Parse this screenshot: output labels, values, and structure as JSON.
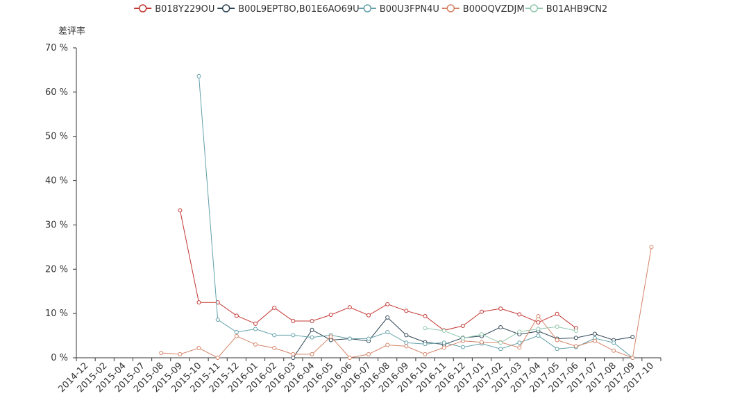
{
  "chart_data": {
    "type": "line",
    "ylabel": "差评率",
    "y_unit": "%",
    "ylim": [
      0,
      70
    ],
    "y_ticks": [
      0,
      10,
      20,
      30,
      40,
      50,
      60,
      70
    ],
    "y_tick_labels": [
      "0 %",
      "10 %",
      "20 %",
      "30 %",
      "40 %",
      "50 %",
      "60 %",
      "70 %"
    ],
    "grid": false,
    "legend_position": "top",
    "x": [
      "2014-12",
      "2015-02",
      "2015-04",
      "2015-07",
      "2015-08",
      "2015-09",
      "2015-10",
      "2015-11",
      "2015-12",
      "2016-01",
      "2016-02",
      "2016-03",
      "2016-04",
      "2016-05",
      "2016-06",
      "2016-07",
      "2016-08",
      "2016-09",
      "2016-10",
      "2016-11",
      "2016-12",
      "2017-01",
      "2017-02",
      "2017-03",
      "2017-04",
      "2017-05",
      "2017-06",
      "2017-07",
      "2017-08",
      "2017-09",
      "2017-10"
    ],
    "series": [
      {
        "name": "B018Y229OU",
        "color": "#c23531",
        "values": [
          null,
          null,
          null,
          null,
          null,
          33.3,
          12.5,
          12.5,
          9.5,
          7.7,
          11.3,
          8.3,
          8.3,
          9.7,
          11.4,
          9.6,
          12.1,
          10.6,
          9.4,
          6.2,
          7.2,
          10.4,
          11.1,
          9.8,
          8.0,
          9.9,
          6.7,
          null,
          null,
          null,
          null
        ]
      },
      {
        "name": "B00L9EPT8O,B01E6AO69U",
        "color": "#2f4554",
        "values": [
          null,
          null,
          null,
          null,
          null,
          null,
          null,
          null,
          null,
          null,
          null,
          0,
          6.3,
          4.0,
          4.3,
          3.8,
          9.1,
          5.1,
          3.5,
          3.0,
          4.5,
          4.9,
          6.9,
          5.3,
          6.0,
          4.3,
          4.5,
          5.4,
          4.0,
          4.7,
          null
        ]
      },
      {
        "name": "B00U3FPN4U",
        "color": "#61a0a8",
        "values": [
          null,
          null,
          null,
          null,
          null,
          null,
          63.6,
          8.6,
          5.8,
          6.5,
          5.1,
          5.1,
          4.6,
          5.1,
          4.3,
          4.3,
          5.8,
          3.4,
          3.1,
          3.4,
          2.4,
          3.2,
          2.0,
          3.4,
          5.0,
          2.0,
          2.4,
          4.4,
          3.4,
          0,
          null
        ]
      },
      {
        "name": "B00OQVZDJM",
        "color": "#d48265",
        "values": [
          null,
          null,
          null,
          null,
          1.1,
          0.8,
          2.2,
          0,
          4.9,
          3.0,
          2.2,
          0.8,
          0.8,
          4.8,
          0,
          0.8,
          2.9,
          2.6,
          0.8,
          2.3,
          3.8,
          3.5,
          3.5,
          2.3,
          9.4,
          4.0,
          2.6,
          3.8,
          1.6,
          0,
          25
        ]
      },
      {
        "name": "B01AHB9CN2",
        "color": "#91c7ae",
        "values": [
          null,
          null,
          null,
          null,
          null,
          null,
          null,
          null,
          null,
          null,
          null,
          null,
          null,
          null,
          null,
          null,
          null,
          null,
          6.7,
          6.1,
          4.4,
          5.3,
          3.4,
          5.9,
          6.5,
          7.0,
          6.1,
          null,
          null,
          null,
          null
        ]
      }
    ]
  }
}
